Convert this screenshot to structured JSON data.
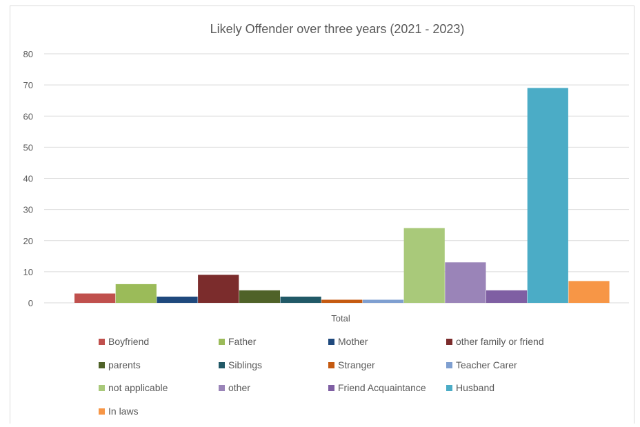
{
  "chart_data": {
    "type": "bar",
    "title": "Likely Offender over three years (2021 - 2023)",
    "categories": [
      "Total"
    ],
    "ylim": [
      0,
      80
    ],
    "yticks": [
      0,
      10,
      20,
      30,
      40,
      50,
      60,
      70,
      80
    ],
    "grid": true,
    "legend": "bottom",
    "series": [
      {
        "name": "Boyfriend",
        "values": [
          3
        ],
        "color": "#c0504d"
      },
      {
        "name": "Father",
        "values": [
          6
        ],
        "color": "#9bbb59"
      },
      {
        "name": "Mother",
        "values": [
          2
        ],
        "color": "#1f497d"
      },
      {
        "name": "other family or friend",
        "values": [
          9
        ],
        "color": "#7b2c2c"
      },
      {
        "name": "parents",
        "values": [
          4
        ],
        "color": "#4f6228"
      },
      {
        "name": "Siblings",
        "values": [
          2
        ],
        "color": "#215967"
      },
      {
        "name": "Stranger",
        "values": [
          1
        ],
        "color": "#c55a11"
      },
      {
        "name": "Teacher Carer",
        "values": [
          1
        ],
        "color": "#7f9fd0"
      },
      {
        "name": "not applicable",
        "values": [
          24
        ],
        "color": "#a9c97a"
      },
      {
        "name": "other",
        "values": [
          13
        ],
        "color": "#9a84b8"
      },
      {
        "name": "Friend Acquaintance",
        "values": [
          4
        ],
        "color": "#7f5fa3"
      },
      {
        "name": "Husband",
        "values": [
          69
        ],
        "color": "#4bacc6"
      },
      {
        "name": "In laws",
        "values": [
          7
        ],
        "color": "#f79646"
      }
    ]
  }
}
